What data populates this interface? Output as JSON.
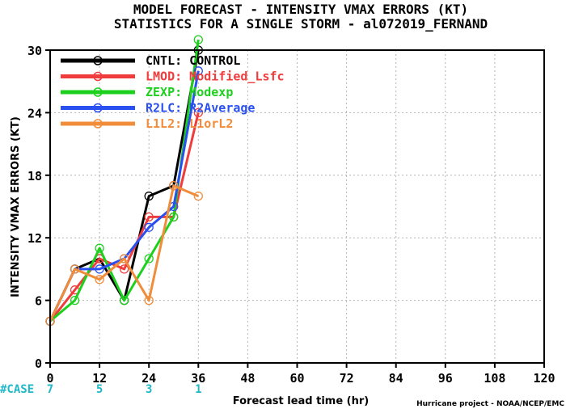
{
  "chart_data": {
    "type": "line",
    "title": "MODEL FORECAST - INTENSITY VMAX ERRORS (KT)",
    "subtitle": "STATISTICS FOR A SINGLE STORM - al072019_FERNAND",
    "xlabel": "Forecast lead time (hr)",
    "ylabel": "INTENSITY VMAX ERRORS (KT)",
    "xlim": [
      0,
      120
    ],
    "ylim": [
      0,
      30
    ],
    "xticks": [
      0,
      12,
      24,
      36,
      48,
      60,
      72,
      84,
      96,
      108,
      120
    ],
    "yticks": [
      0,
      6,
      12,
      18,
      24,
      30
    ],
    "grid": true,
    "legend_position": "top-left",
    "case_label": "#CASE",
    "cases": [
      {
        "x": 0,
        "n": "7"
      },
      {
        "x": 12,
        "n": "5"
      },
      {
        "x": 24,
        "n": "3"
      },
      {
        "x": 36,
        "n": "1"
      }
    ],
    "credit": "Hurricane project - NOAA/NCEP/EMC",
    "series": [
      {
        "name": "CNTL: CONTROL",
        "color": "#000000",
        "points": [
          [
            0,
            4
          ],
          [
            6,
            9
          ],
          [
            12,
            10
          ],
          [
            18,
            6
          ],
          [
            24,
            16
          ],
          [
            30,
            17
          ],
          [
            36,
            30
          ]
        ]
      },
      {
        "name": "LMOD: Modified_Lsfc",
        "color": "#f03c3c",
        "points": [
          [
            0,
            4
          ],
          [
            6,
            7
          ],
          [
            12,
            10
          ],
          [
            18,
            9
          ],
          [
            24,
            14
          ],
          [
            30,
            14
          ],
          [
            36,
            24
          ]
        ]
      },
      {
        "name": "ZEXP: Modexp",
        "color": "#1ed01e",
        "points": [
          [
            0,
            4
          ],
          [
            6,
            6
          ],
          [
            12,
            11
          ],
          [
            18,
            6
          ],
          [
            24,
            10
          ],
          [
            30,
            14
          ],
          [
            36,
            31
          ]
        ]
      },
      {
        "name": "R2LC: R2Average",
        "color": "#2a50f0",
        "points": [
          [
            0,
            4
          ],
          [
            6,
            9
          ],
          [
            12,
            9
          ],
          [
            18,
            10
          ],
          [
            24,
            13
          ],
          [
            30,
            15
          ],
          [
            36,
            28
          ]
        ]
      },
      {
        "name": "L1L2: L1orL2",
        "color": "#f08c3a",
        "points": [
          [
            0,
            4
          ],
          [
            6,
            9
          ],
          [
            12,
            8
          ],
          [
            18,
            10
          ],
          [
            24,
            6
          ],
          [
            30,
            17
          ],
          [
            36,
            16
          ]
        ]
      }
    ]
  }
}
